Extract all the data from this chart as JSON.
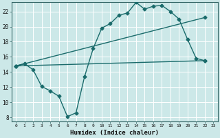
{
  "xlabel": "Humidex (Indice chaleur)",
  "bg_color": "#cce8e8",
  "grid_color": "#ffffff",
  "line_color": "#1a6b6b",
  "xlim": [
    -0.5,
    23.5
  ],
  "ylim": [
    7.5,
    23.2
  ],
  "xticks": [
    0,
    1,
    2,
    3,
    4,
    5,
    6,
    7,
    8,
    9,
    10,
    11,
    12,
    13,
    14,
    15,
    16,
    17,
    18,
    19,
    20,
    21,
    22,
    23
  ],
  "yticks": [
    8,
    10,
    12,
    14,
    16,
    18,
    20,
    22
  ],
  "line1_x": [
    0,
    1,
    2,
    3,
    4,
    5,
    6,
    7,
    8,
    9,
    10,
    11,
    12,
    13,
    14,
    15,
    16,
    17,
    18,
    19,
    20,
    21,
    22
  ],
  "line1_y": [
    14.8,
    15.1,
    14.3,
    12.1,
    11.5,
    10.8,
    8.1,
    8.6,
    13.4,
    17.1,
    19.8,
    20.4,
    21.5,
    21.8,
    23.2,
    22.3,
    22.7,
    22.8,
    22.0,
    21.0,
    18.3,
    15.8,
    15.5
  ],
  "line2_x": [
    0,
    22
  ],
  "line2_y": [
    14.8,
    15.5
  ],
  "line3_x": [
    0,
    22
  ],
  "line3_y": [
    14.8,
    21.2
  ],
  "marker": "D",
  "markersize": 2.5,
  "linewidth": 1.0
}
